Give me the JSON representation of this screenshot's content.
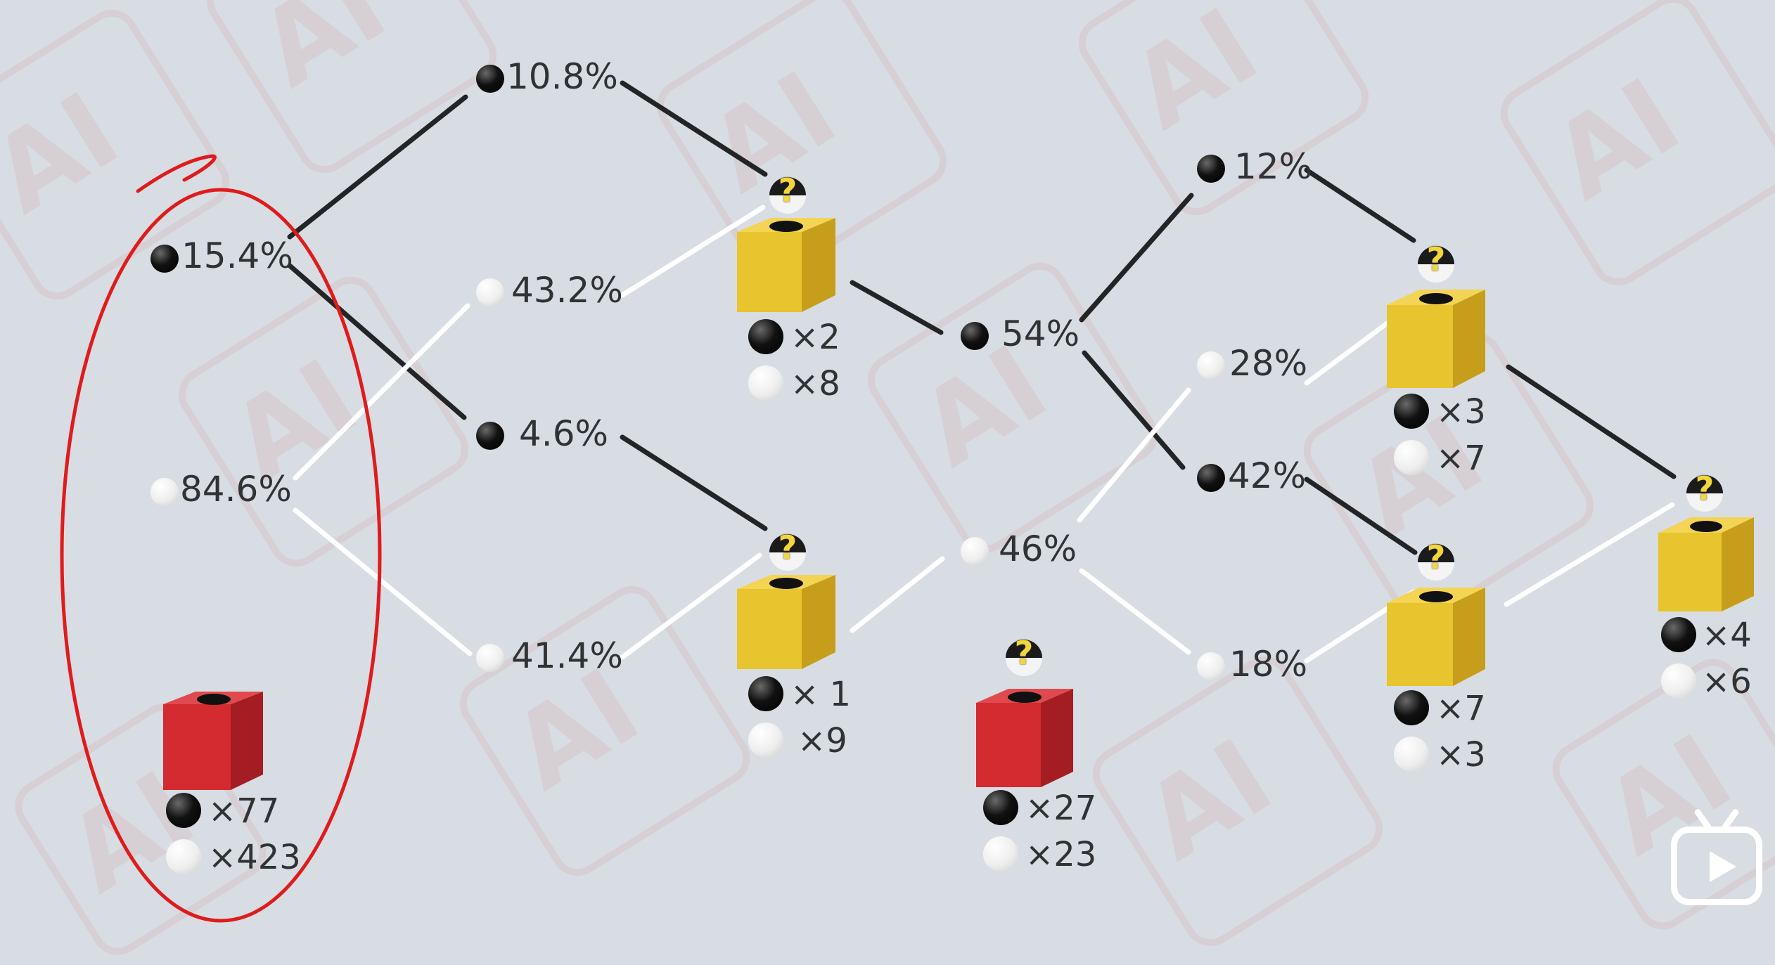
{
  "colors": {
    "background": "#d8dde3",
    "black_line": "#222426",
    "white_line": "#ffffff",
    "yellow_box": "#e8c42e",
    "red_box": "#d32b2f",
    "annotation": "#e01b1b"
  },
  "nodes": {
    "n_l1_black": "15.4%",
    "n_l1_white": "84.6%",
    "n_l2_bb": "10.8%",
    "n_l2_bw": "43.2%",
    "n_l2_wb": "4.6%",
    "n_l2_ww": "41.4%",
    "n_l3_black": "54%",
    "n_l3_white": "46%",
    "n_l4_1": "12%",
    "n_l4_2": "28%",
    "n_l4_3": "42%",
    "n_l4_4": "18%"
  },
  "boxes": {
    "red_left": {
      "black": "×77",
      "white": "×423"
    },
    "yellow_a": {
      "black": "×2",
      "white": "×8"
    },
    "yellow_b": {
      "black": "× 1",
      "white": "×9"
    },
    "red_mid": {
      "black": "×27",
      "white": "×23"
    },
    "yellow_c": {
      "black": "×3",
      "white": "×7"
    },
    "yellow_d": {
      "black": "×7",
      "white": "×3"
    },
    "yellow_e": {
      "black": "×4",
      "white": "×6"
    }
  },
  "unknown_ball_mark": "?",
  "icons": {
    "play": "play-button-icon",
    "box": "cube-box-icon",
    "mystery_ball": "question-ball-icon"
  }
}
